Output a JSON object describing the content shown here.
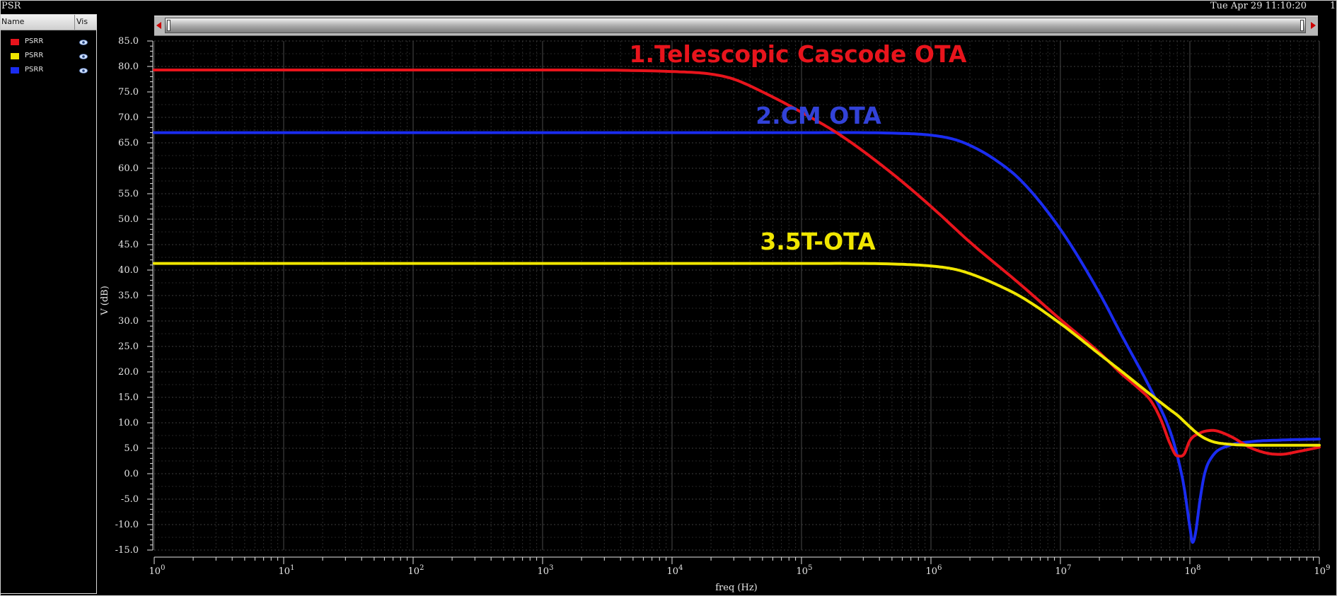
{
  "window": {
    "title": "PSR",
    "datetime": "Tue Apr 29 11:10:20",
    "page_indicator": "1"
  },
  "legend": {
    "header_name": "Name",
    "header_vis": "Vis",
    "items": [
      {
        "label": "PSRR",
        "color": "#e8141c",
        "visible_icon": "eye-icon"
      },
      {
        "label": "PSRR",
        "color": "#f0e600",
        "visible_icon": "eye-icon"
      },
      {
        "label": "PSRR",
        "color": "#1a2cf0",
        "visible_icon": "eye-icon"
      }
    ]
  },
  "scrollbar": {
    "left_icon": "arrow-left-icon",
    "right_icon": "arrow-right-icon"
  },
  "chart_data": {
    "type": "line",
    "title": "",
    "xlabel": "freq (Hz)",
    "ylabel": "V (dB)",
    "xscale": "log",
    "xlim": [
      1,
      1000000000
    ],
    "ylim": [
      -15,
      85
    ],
    "grid": true,
    "background": "#000000",
    "x_ticks": [
      {
        "base": "10",
        "exp": "0"
      },
      {
        "base": "10",
        "exp": "1"
      },
      {
        "base": "10",
        "exp": "2"
      },
      {
        "base": "10",
        "exp": "3"
      },
      {
        "base": "10",
        "exp": "4"
      },
      {
        "base": "10",
        "exp": "5"
      },
      {
        "base": "10",
        "exp": "6"
      },
      {
        "base": "10",
        "exp": "7"
      },
      {
        "base": "10",
        "exp": "8"
      },
      {
        "base": "10",
        "exp": "9"
      }
    ],
    "y_ticks": [
      "85.0",
      "80.0",
      "75.0",
      "70.0",
      "65.0",
      "60.0",
      "55.0",
      "50.0",
      "45.0",
      "40.0",
      "35.0",
      "30.0",
      "25.0",
      "20.0",
      "15.0",
      "10.0",
      "5.0",
      "0.0",
      "-5.0",
      "-10.0",
      "-15.0"
    ],
    "y_tick_values": [
      85,
      80,
      75,
      70,
      65,
      60,
      55,
      50,
      45,
      40,
      35,
      30,
      25,
      20,
      15,
      10,
      5,
      0,
      -5,
      -10,
      -15
    ],
    "series": [
      {
        "name": "PSRR",
        "color": "#e8141c",
        "x": [
          1,
          10,
          100,
          1000,
          10000,
          20000,
          30000,
          50000,
          100000,
          200000,
          500000,
          1000000,
          2000000,
          5000000,
          10000000,
          20000000,
          30000000,
          40000000,
          50000000,
          60000000,
          70000000,
          80000000,
          90000000,
          100000000,
          120000000,
          150000000,
          200000000,
          300000000,
          400000000,
          500000000,
          700000000,
          1000000000
        ],
        "y": [
          79.3,
          79.3,
          79.3,
          79.3,
          79.0,
          78.5,
          77.5,
          75.0,
          71.0,
          66.5,
          59.0,
          52.5,
          45.5,
          37.0,
          30.3,
          23.8,
          19.5,
          16.8,
          14.3,
          10.5,
          6.0,
          3.5,
          3.8,
          6.5,
          8.0,
          8.5,
          7.5,
          5.0,
          4.0,
          3.8,
          4.4,
          5.2
        ]
      },
      {
        "name": "PSRR",
        "color": "#f0e600",
        "x": [
          1,
          10,
          100,
          1000,
          10000,
          100000,
          500000,
          1000000,
          1500000,
          2000000,
          3000000,
          5000000,
          10000000,
          20000000,
          30000000,
          50000000,
          70000000,
          80000000,
          100000000,
          120000000,
          150000000,
          200000000,
          300000000,
          500000000,
          1000000000
        ],
        "y": [
          41.3,
          41.3,
          41.3,
          41.3,
          41.3,
          41.3,
          41.2,
          40.8,
          40.2,
          39.3,
          37.5,
          34.7,
          29.5,
          23.5,
          20.0,
          15.5,
          12.6,
          11.5,
          9.2,
          7.5,
          6.3,
          5.8,
          5.6,
          5.6,
          5.6
        ]
      },
      {
        "name": "PSRR",
        "color": "#1a2cf0",
        "x": [
          1,
          10,
          100,
          1000,
          10000,
          100000,
          500000,
          1000000,
          1500000,
          2000000,
          3000000,
          5000000,
          10000000,
          20000000,
          30000000,
          50000000,
          70000000,
          80000000,
          90000000,
          100000000,
          105000000,
          110000000,
          120000000,
          130000000,
          150000000,
          200000000,
          300000000,
          500000000,
          1000000000
        ],
        "y": [
          67.0,
          67.0,
          67.0,
          67.0,
          67.0,
          67.0,
          66.9,
          66.5,
          65.7,
          64.5,
          62.0,
          57.5,
          48.0,
          35.5,
          27.0,
          16.5,
          8.5,
          3.5,
          -2.5,
          -10.5,
          -13.5,
          -12.0,
          -5.0,
          0.0,
          3.5,
          5.5,
          6.3,
          6.6,
          6.8
        ]
      }
    ],
    "annotations": [
      {
        "text": "1.Telescopic Cascode OTA",
        "color": "#e8141c"
      },
      {
        "text": "2.CM OTA",
        "color": "#3242d8"
      },
      {
        "text": "3.5T-OTA",
        "color": "#f0e600"
      }
    ]
  }
}
